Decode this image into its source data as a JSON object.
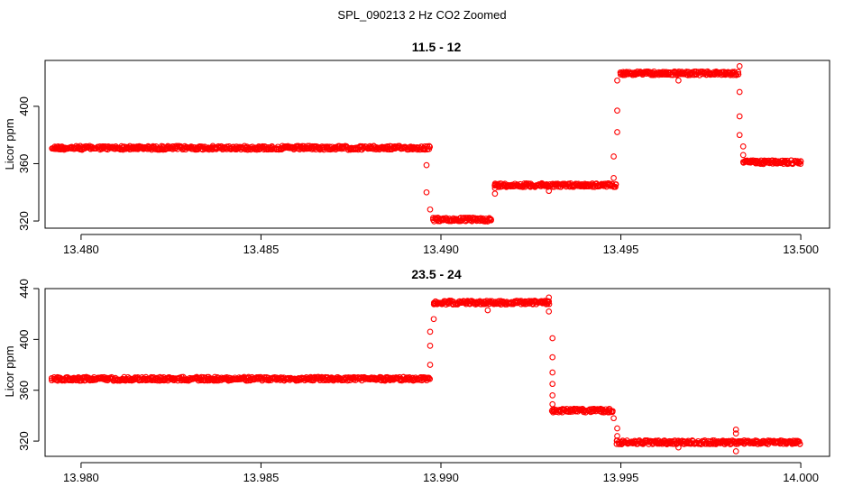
{
  "figure": {
    "title": "SPL_090213  2 Hz CO2 Zoomed"
  },
  "chart_data": [
    {
      "type": "scatter",
      "title": "11.5 - 12",
      "ylabel": "Licor ppm",
      "xlabel": "",
      "xlim": [
        13.479,
        13.5008
      ],
      "ylim": [
        315,
        432
      ],
      "xticks": [
        "13.480",
        "13.485",
        "13.490",
        "13.495",
        "13.500"
      ],
      "xtick_values": [
        13.48,
        13.485,
        13.49,
        13.495,
        13.5
      ],
      "yticks": [
        "320",
        "360",
        "400"
      ],
      "ytick_values": [
        320,
        360,
        400
      ],
      "marker_color": "#ff0000",
      "segments": [
        {
          "x_start": 13.4792,
          "x_end": 13.4897,
          "y": 371
        },
        {
          "x_start": 13.4898,
          "x_end": 13.4914,
          "y": 321
        },
        {
          "x_start": 13.4915,
          "x_end": 13.4949,
          "y": 345
        },
        {
          "x_start": 13.495,
          "x_end": 13.4983,
          "y": 423
        },
        {
          "x_start": 13.4984,
          "x_end": 13.5,
          "y": 361
        }
      ],
      "transition_points": [
        {
          "x": 13.4896,
          "y": 359
        },
        {
          "x": 13.4896,
          "y": 340
        },
        {
          "x": 13.4897,
          "y": 328
        },
        {
          "x": 13.4915,
          "y": 339
        },
        {
          "x": 13.4915,
          "y": 343
        },
        {
          "x": 13.4948,
          "y": 350
        },
        {
          "x": 13.4948,
          "y": 365
        },
        {
          "x": 13.4949,
          "y": 382
        },
        {
          "x": 13.4949,
          "y": 397
        },
        {
          "x": 13.4949,
          "y": 418
        },
        {
          "x": 13.4983,
          "y": 428
        },
        {
          "x": 13.4983,
          "y": 410
        },
        {
          "x": 13.4983,
          "y": 393
        },
        {
          "x": 13.4983,
          "y": 380
        },
        {
          "x": 13.4984,
          "y": 372
        },
        {
          "x": 13.4984,
          "y": 366
        }
      ],
      "outlier_points": [
        {
          "x": 13.493,
          "y": 341
        },
        {
          "x": 13.4966,
          "y": 418
        },
        {
          "x": 13.4979,
          "y": 423
        }
      ]
    },
    {
      "type": "scatter",
      "title": "23.5 - 24",
      "ylabel": "Licor ppm",
      "xlabel": "",
      "xlim": [
        13.979,
        14.0008
      ],
      "ylim": [
        308,
        440
      ],
      "xticks": [
        "13.980",
        "13.985",
        "13.990",
        "13.995",
        "14.000"
      ],
      "xtick_values": [
        13.98,
        13.985,
        13.99,
        13.995,
        14.0
      ],
      "yticks": [
        "320",
        "360",
        "400",
        "440"
      ],
      "ytick_values": [
        320,
        360,
        400,
        440
      ],
      "marker_color": "#ff0000",
      "segments": [
        {
          "x_start": 13.9792,
          "x_end": 13.9897,
          "y": 369
        },
        {
          "x_start": 13.9898,
          "x_end": 13.993,
          "y": 429
        },
        {
          "x_start": 13.9931,
          "x_end": 13.9948,
          "y": 344
        },
        {
          "x_start": 13.9949,
          "x_end": 14.0,
          "y": 319
        }
      ],
      "transition_points": [
        {
          "x": 13.9897,
          "y": 380
        },
        {
          "x": 13.9897,
          "y": 395
        },
        {
          "x": 13.9897,
          "y": 406
        },
        {
          "x": 13.9898,
          "y": 416
        },
        {
          "x": 13.993,
          "y": 433
        },
        {
          "x": 13.993,
          "y": 422
        },
        {
          "x": 13.9931,
          "y": 401
        },
        {
          "x": 13.9931,
          "y": 386
        },
        {
          "x": 13.9931,
          "y": 374
        },
        {
          "x": 13.9931,
          "y": 365
        },
        {
          "x": 13.9931,
          "y": 356
        },
        {
          "x": 13.9931,
          "y": 349
        },
        {
          "x": 13.9948,
          "y": 338
        },
        {
          "x": 13.9949,
          "y": 330
        },
        {
          "x": 13.9949,
          "y": 324
        }
      ],
      "outlier_points": [
        {
          "x": 13.9913,
          "y": 423
        },
        {
          "x": 13.9966,
          "y": 315
        },
        {
          "x": 13.9982,
          "y": 312
        },
        {
          "x": 13.9982,
          "y": 329
        },
        {
          "x": 13.9982,
          "y": 326
        }
      ]
    }
  ]
}
